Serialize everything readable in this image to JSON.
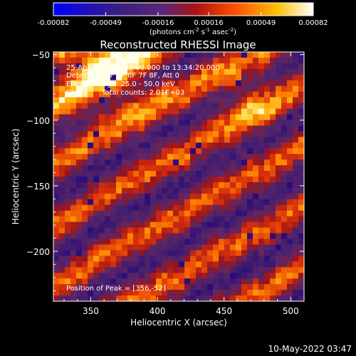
{
  "chart_data": {
    "type": "heatmap",
    "title": "Reconstructed RHESSI Image",
    "xlabel": "Heliocentric X (arcsec)",
    "ylabel": "Heliocentric Y (arcsec)",
    "xlim": [
      322,
      510
    ],
    "ylim": [
      -238,
      -48
    ],
    "xticks": [
      350,
      400,
      450,
      500
    ],
    "yticks": [
      -50,
      -100,
      -150,
      -200
    ],
    "colorbar": {
      "ticks": [
        -0.00082,
        -0.00049,
        -0.00016,
        0.00016,
        0.00049,
        0.00082
      ],
      "tick_labels": [
        "-0.00082",
        "-0.00049",
        "-0.00016",
        "0.00016",
        "0.00049",
        "0.00082"
      ],
      "range": [
        -0.00082,
        0.00082
      ],
      "colormap": "blue-purple-red-yellow-white",
      "colors": [
        "#0000ff",
        "#3a2080",
        "#5a2a8a",
        "#b01010",
        "#ff5000",
        "#ffc000",
        "#ffffff"
      ]
    },
    "peak": [
      356,
      -52
    ],
    "annotations": {
      "time_range": "25-Apr-2012 13:32:00.000 to 13:34:20.000",
      "detectors": "Detectors: 3F 5F 6F 7F 8F, Att 0",
      "energy_range": "Energy Range: 25.0 - 50.0 keV",
      "algorithm": "Clean",
      "total_counts": "Total counts: 2.01E+03",
      "peak_position": "Position of Peak = [356,-52]"
    }
  },
  "footer": {
    "timestamp": "10-May-2022 03:47"
  }
}
